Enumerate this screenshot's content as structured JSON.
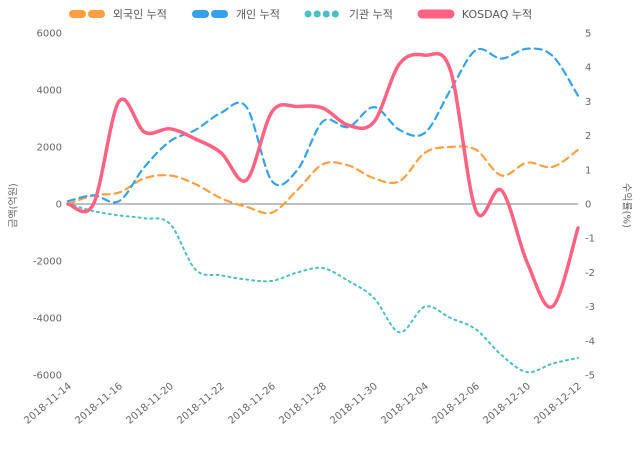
{
  "chart_data": {
    "type": "line",
    "title": "",
    "x": [
      "2018-11-14",
      "2018-11-15",
      "2018-11-16",
      "2018-11-19",
      "2018-11-20",
      "2018-11-21",
      "2018-11-22",
      "2018-11-23",
      "2018-11-26",
      "2018-11-27",
      "2018-11-28",
      "2018-11-29",
      "2018-11-30",
      "2018-12-03",
      "2018-12-04",
      "2018-12-05",
      "2018-12-06",
      "2018-12-07",
      "2018-12-10",
      "2018-12-11",
      "2018-12-12"
    ],
    "x_tick_indices": [
      0,
      2,
      4,
      6,
      8,
      10,
      12,
      14,
      16,
      18,
      20
    ],
    "x_tick_labels": [
      "2018-11-14",
      "2018-11-16",
      "2018-11-20",
      "2018-11-22",
      "2018-11-26",
      "2018-11-28",
      "2018-11-30",
      "2018-12-04",
      "2018-12-06",
      "2018-12-10",
      "2018-12-12"
    ],
    "left_axis": {
      "label": "금액(억원)",
      "min": -6000,
      "max": 6000,
      "ticks": [
        6000,
        4000,
        2000,
        0,
        -2000,
        -4000,
        -6000
      ]
    },
    "right_axis": {
      "label": "수익률(%)",
      "min": -5,
      "max": 5,
      "ticks": [
        5,
        4,
        3,
        2,
        1,
        0,
        -1,
        -2,
        -3,
        -4,
        -5
      ]
    },
    "zero_line": true,
    "grid": false,
    "legend_position": "top",
    "series": [
      {
        "name": "외국인 누적",
        "color": "#ff9f40",
        "line_style": "dashed",
        "axis": "left",
        "values": [
          0,
          300,
          400,
          900,
          1000,
          700,
          200,
          -100,
          -300,
          500,
          1400,
          1350,
          900,
          800,
          1800,
          2000,
          1900,
          1000,
          1450,
          1300,
          1900
        ]
      },
      {
        "name": "개인 누적",
        "color": "#36a2eb",
        "line_style": "dashed",
        "axis": "left",
        "values": [
          100,
          300,
          100,
          1300,
          2200,
          2600,
          3200,
          3400,
          800,
          1200,
          2900,
          2700,
          3400,
          2600,
          2500,
          4000,
          5400,
          5100,
          5450,
          5200,
          3800
        ]
      },
      {
        "name": "기관 누적",
        "color": "#4bc0c0",
        "line_style": "dotted",
        "axis": "left",
        "values": [
          0,
          -250,
          -400,
          -500,
          -700,
          -2300,
          -2500,
          -2650,
          -2700,
          -2400,
          -2250,
          -2700,
          -3300,
          -4500,
          -3600,
          -4000,
          -4400,
          -5300,
          -5900,
          -5600,
          -5400
        ]
      },
      {
        "name": "KOSDAQ 누적",
        "color": "#ff6384",
        "line_style": "solid",
        "axis": "right",
        "values": [
          0,
          0,
          3.0,
          2.1,
          2.2,
          1.9,
          1.5,
          0.7,
          2.7,
          2.85,
          2.8,
          2.3,
          2.4,
          4.1,
          4.35,
          3.9,
          -0.2,
          0.4,
          -1.7,
          -3.0,
          -0.7
        ]
      }
    ]
  }
}
